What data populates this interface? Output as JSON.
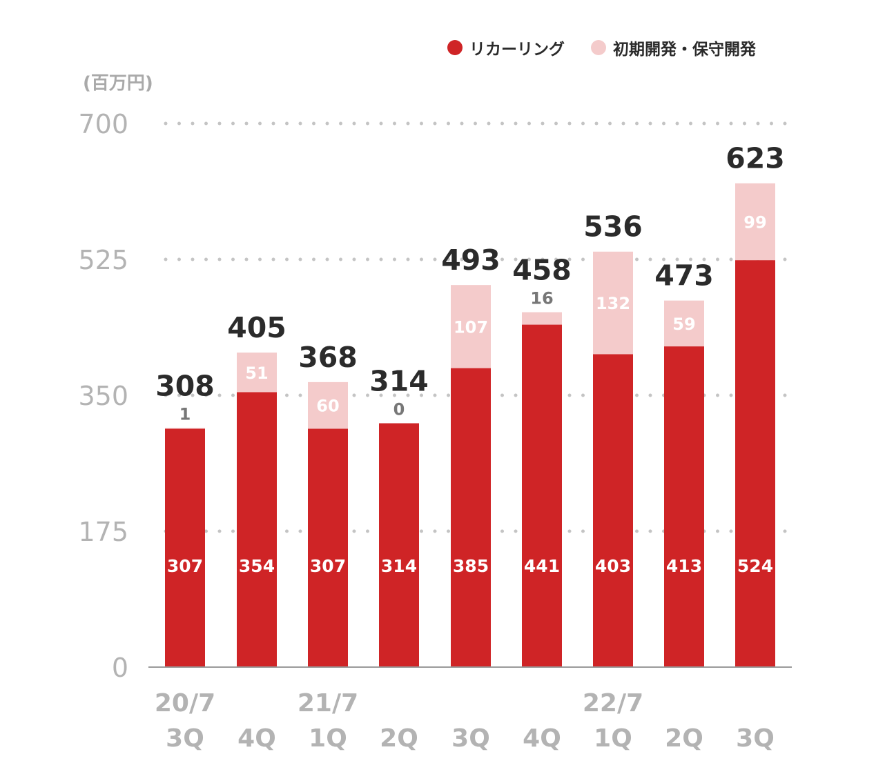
{
  "chart_data": {
    "type": "bar",
    "stacked": true,
    "unit_label": "(百万円)",
    "x_top_labels": [
      "20/7",
      "",
      "21/7",
      "",
      "",
      "",
      "22/7",
      "",
      ""
    ],
    "categories": [
      "3Q",
      "4Q",
      "1Q",
      "2Q",
      "3Q",
      "4Q",
      "1Q",
      "2Q",
      "3Q"
    ],
    "series": [
      {
        "name": "リカーリング",
        "values": [
          307,
          354,
          307,
          314,
          385,
          441,
          403,
          413,
          524
        ],
        "color": "#cf2426"
      },
      {
        "name": "初期開発・保守開発",
        "values": [
          1,
          51,
          60,
          0,
          107,
          16,
          132,
          59,
          99
        ],
        "color": "#f4cbcb"
      }
    ],
    "totals": [
      308,
      405,
      368,
      314,
      493,
      458,
      536,
      473,
      623
    ],
    "ylim": [
      0,
      700
    ],
    "yticks": [
      0,
      175,
      350,
      525,
      700
    ],
    "grid": "dotted",
    "legend_position": "top-right"
  }
}
